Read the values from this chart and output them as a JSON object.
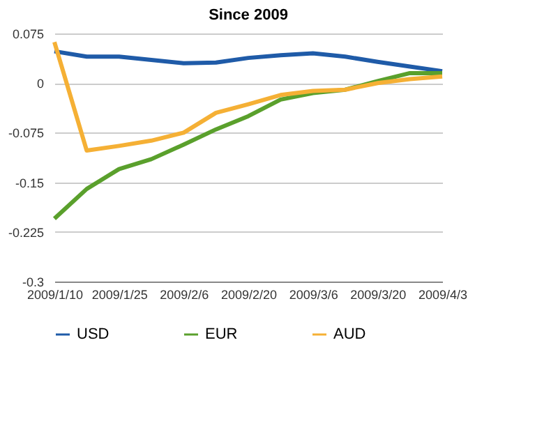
{
  "chart_data": {
    "type": "line",
    "title": "Since 2009",
    "categories": [
      "2009/1/10",
      null,
      "2009/1/25",
      null,
      "2009/2/6",
      null,
      "2009/2/20",
      null,
      "2009/3/6",
      null,
      "2009/3/20",
      null,
      "2009/4/3"
    ],
    "series": [
      {
        "name": "USD",
        "color": "#1f5ba8",
        "values": [
          0.048,
          0.04,
          0.04,
          0.035,
          0.03,
          0.031,
          0.038,
          0.042,
          0.045,
          0.04,
          0.032,
          0.025,
          0.018
        ]
      },
      {
        "name": "EUR",
        "color": "#5aa02c",
        "values": [
          -0.205,
          -0.16,
          -0.13,
          -0.115,
          -0.093,
          -0.07,
          -0.05,
          -0.025,
          -0.015,
          -0.01,
          0.003,
          0.015,
          0.015
        ]
      },
      {
        "name": "AUD",
        "color": "#f5b035",
        "values": [
          0.062,
          -0.102,
          -0.095,
          -0.087,
          -0.075,
          -0.045,
          -0.032,
          -0.018,
          -0.012,
          -0.01,
          0.0,
          0.006,
          0.01
        ]
      }
    ],
    "ylim": [
      -0.3,
      0.075
    ],
    "yticks": [
      -0.3,
      -0.225,
      -0.15,
      -0.075,
      0,
      0.075
    ],
    "grid": "y",
    "legend": "bottom",
    "marker": "none",
    "line_style": "solid"
  }
}
